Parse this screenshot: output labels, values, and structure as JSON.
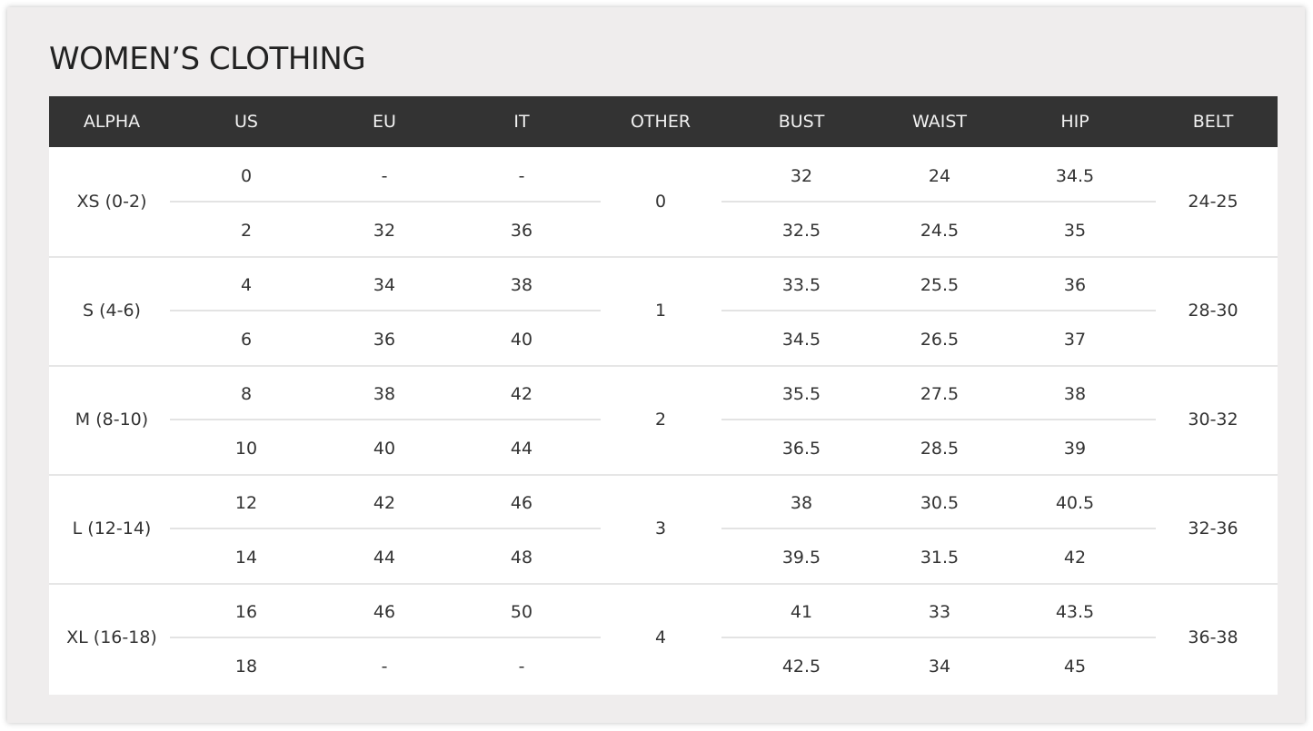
{
  "title": "WOMEN’S CLOTHING",
  "headers": [
    "ALPHA",
    "US",
    "EU",
    "IT",
    "OTHER",
    "BUST",
    "WAIST",
    "HIP",
    "BELT"
  ],
  "rows": [
    {
      "alpha": "XS (0-2)",
      "other": "0",
      "belt": "24-25",
      "sub": [
        {
          "us": "0",
          "eu": "-",
          "it": "-",
          "bust": "32",
          "waist": "24",
          "hip": "34.5"
        },
        {
          "us": "2",
          "eu": "32",
          "it": "36",
          "bust": "32.5",
          "waist": "24.5",
          "hip": "35"
        }
      ]
    },
    {
      "alpha": "S (4-6)",
      "other": "1",
      "belt": "28-30",
      "sub": [
        {
          "us": "4",
          "eu": "34",
          "it": "38",
          "bust": "33.5",
          "waist": "25.5",
          "hip": "36"
        },
        {
          "us": "6",
          "eu": "36",
          "it": "40",
          "bust": "34.5",
          "waist": "26.5",
          "hip": "37"
        }
      ]
    },
    {
      "alpha": "M (8-10)",
      "other": "2",
      "belt": "30-32",
      "sub": [
        {
          "us": "8",
          "eu": "38",
          "it": "42",
          "bust": "35.5",
          "waist": "27.5",
          "hip": "38"
        },
        {
          "us": "10",
          "eu": "40",
          "it": "44",
          "bust": "36.5",
          "waist": "28.5",
          "hip": "39"
        }
      ]
    },
    {
      "alpha": "L (12-14)",
      "other": "3",
      "belt": "32-36",
      "sub": [
        {
          "us": "12",
          "eu": "42",
          "it": "46",
          "bust": "38",
          "waist": "30.5",
          "hip": "40.5"
        },
        {
          "us": "14",
          "eu": "44",
          "it": "48",
          "bust": "39.5",
          "waist": "31.5",
          "hip": "42"
        }
      ]
    },
    {
      "alpha": "XL (16-18)",
      "other": "4",
      "belt": "36-38",
      "sub": [
        {
          "us": "16",
          "eu": "46",
          "it": "50",
          "bust": "41",
          "waist": "33",
          "hip": "43.5"
        },
        {
          "us": "18",
          "eu": "-",
          "it": "-",
          "bust": "42.5",
          "waist": "34",
          "hip": "45"
        }
      ]
    }
  ]
}
